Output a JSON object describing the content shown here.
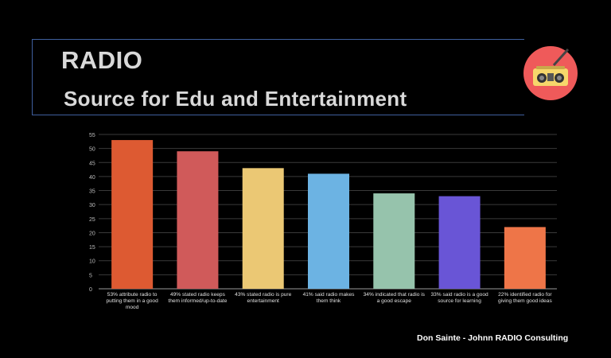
{
  "header": {
    "title": "RADIO",
    "subtitle": "Source for Edu and Entertainment"
  },
  "logo": {
    "icon": "boombox-icon"
  },
  "footer": {
    "credit": "Don Sainte - Johnn RADIO Consulting"
  },
  "chart_data": {
    "type": "bar",
    "categories": [
      [
        "53% attribute radio to",
        "putting them in a good",
        "mood"
      ],
      [
        "49% stated radio keeps",
        "them informed/up-to-date"
      ],
      [
        "43% stated radio is pure",
        "entertainment"
      ],
      [
        "41% said radio makes",
        "them think"
      ],
      [
        "34% indicated that radio is",
        "a good escape"
      ],
      [
        "33% said radio is a good",
        "source for learning"
      ],
      [
        "22% identified radio for",
        "giving them good ideas"
      ]
    ],
    "values": [
      53,
      49,
      43,
      41,
      34,
      33,
      22
    ],
    "colors": [
      "#dd5a32",
      "#d05a5a",
      "#ebc874",
      "#6cb3e3",
      "#96c3ac",
      "#6955d6",
      "#ee7548"
    ],
    "ylim": [
      0,
      55
    ],
    "yticks": [
      0,
      5,
      10,
      15,
      20,
      25,
      30,
      35,
      40,
      45,
      50,
      55
    ],
    "grid": true,
    "title": "",
    "xlabel": "",
    "ylabel": ""
  }
}
